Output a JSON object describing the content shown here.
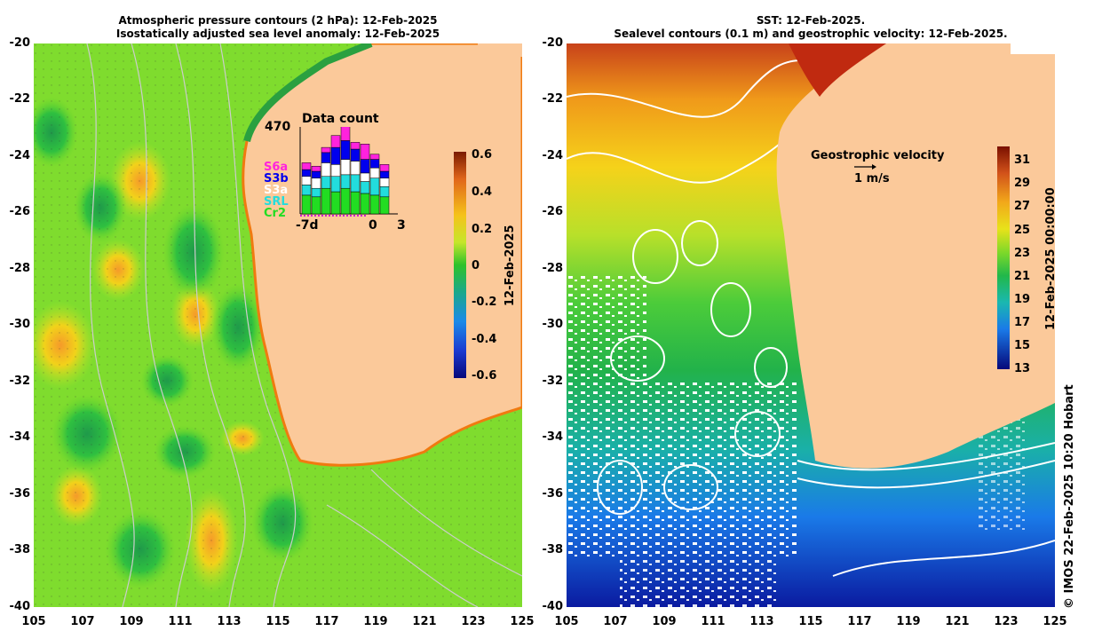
{
  "left_panel": {
    "title_line1": "Atmospheric pressure contours (2 hPa): 12-Feb-2025",
    "title_line2": "Isostatically adjusted sea level anomaly: 12-Feb-2025",
    "y_ticks": [
      "-20",
      "-22",
      "-24",
      "-26",
      "-28",
      "-30",
      "-32",
      "-34",
      "-36",
      "-38",
      "-40"
    ],
    "x_ticks": [
      "105",
      "107",
      "109",
      "111",
      "113",
      "115",
      "117",
      "119",
      "121",
      "123",
      "125"
    ],
    "colorbar": {
      "ticks": [
        "0.6",
        "0.4",
        "0.2",
        "0",
        "-0.2",
        "-0.4",
        "-0.6"
      ],
      "label": "12-Feb-2025",
      "range": [
        -0.6,
        0.6
      ]
    },
    "data_count": {
      "title": "Data count",
      "max_label": "470",
      "x_labels": [
        "-7d",
        "0",
        "3"
      ],
      "satellites": [
        {
          "name": "S6a",
          "color": "#ff22dd"
        },
        {
          "name": "S3b",
          "color": "#0000ee"
        },
        {
          "name": "S3a",
          "color": "#ffffff"
        },
        {
          "name": "SRL",
          "color": "#22dddd"
        },
        {
          "name": "Cr2",
          "color": "#22dd22"
        }
      ]
    }
  },
  "right_panel": {
    "title_line1": "SST: 12-Feb-2025.",
    "title_line2": "Sealevel contours (0.1 m) and geostrophic velocity: 12-Feb-2025.",
    "y_ticks": [
      "-20",
      "-22",
      "-24",
      "-26",
      "-28",
      "-30",
      "-32",
      "-34",
      "-36",
      "-38",
      "-40"
    ],
    "x_ticks": [
      "105",
      "107",
      "109",
      "111",
      "113",
      "115",
      "117",
      "119",
      "121",
      "123",
      "125"
    ],
    "velocity_legend_title": "Geostrophic velocity",
    "velocity_legend_scale": "1 m/s",
    "colorbar": {
      "ticks": [
        "31",
        "29",
        "27",
        "25",
        "23",
        "21",
        "19",
        "17",
        "15",
        "13"
      ],
      "label": "12-Feb-2025 00:00:00",
      "range": [
        13,
        32
      ]
    }
  },
  "credit": "© IMOS 22-Feb-2025 10:20 Hobart",
  "colors": {
    "land": "#fbc99a",
    "contour_white": "#ffffff",
    "contour_gray": "#999999"
  }
}
